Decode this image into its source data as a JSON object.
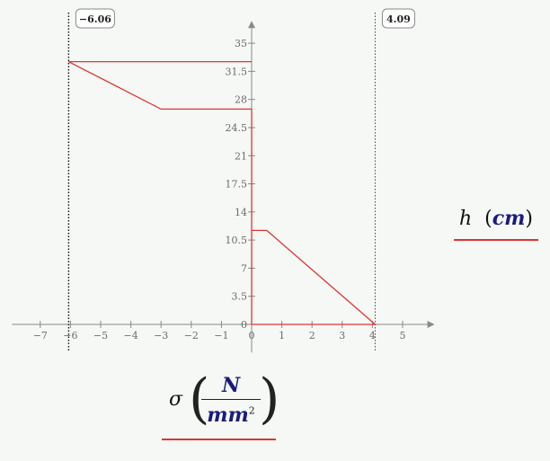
{
  "chart_data": {
    "type": "line",
    "x_ticks": [
      -7,
      -6,
      -5,
      -4,
      -3,
      -2,
      -1,
      0,
      1,
      2,
      3,
      4,
      5
    ],
    "y_ticks": [
      0,
      3.5,
      7,
      10.5,
      14,
      17.5,
      21,
      24.5,
      28,
      31.5,
      35
    ],
    "xlim": [
      -8,
      6
    ],
    "ylim": [
      -3.5,
      38
    ],
    "markers": [
      {
        "x": -6.06,
        "label": "−6.06"
      },
      {
        "x": 4.09,
        "label": "4.09"
      }
    ],
    "series": [
      {
        "color": "#e03434",
        "points": [
          [
            4.09,
            0
          ],
          [
            0,
            0
          ],
          [
            0,
            11.7
          ],
          [
            0.5,
            11.7
          ],
          [
            4.09,
            0
          ],
          [
            0,
            0
          ],
          [
            0,
            26.8
          ],
          [
            -3,
            26.8
          ],
          [
            -6.06,
            32.7
          ],
          [
            0,
            32.7
          ]
        ]
      }
    ],
    "xlabel": {
      "variable": "σ",
      "numerator": "N",
      "denominator": "mm",
      "exponent": "2"
    },
    "ylabel": {
      "variable": "h",
      "unit": "cm"
    }
  }
}
